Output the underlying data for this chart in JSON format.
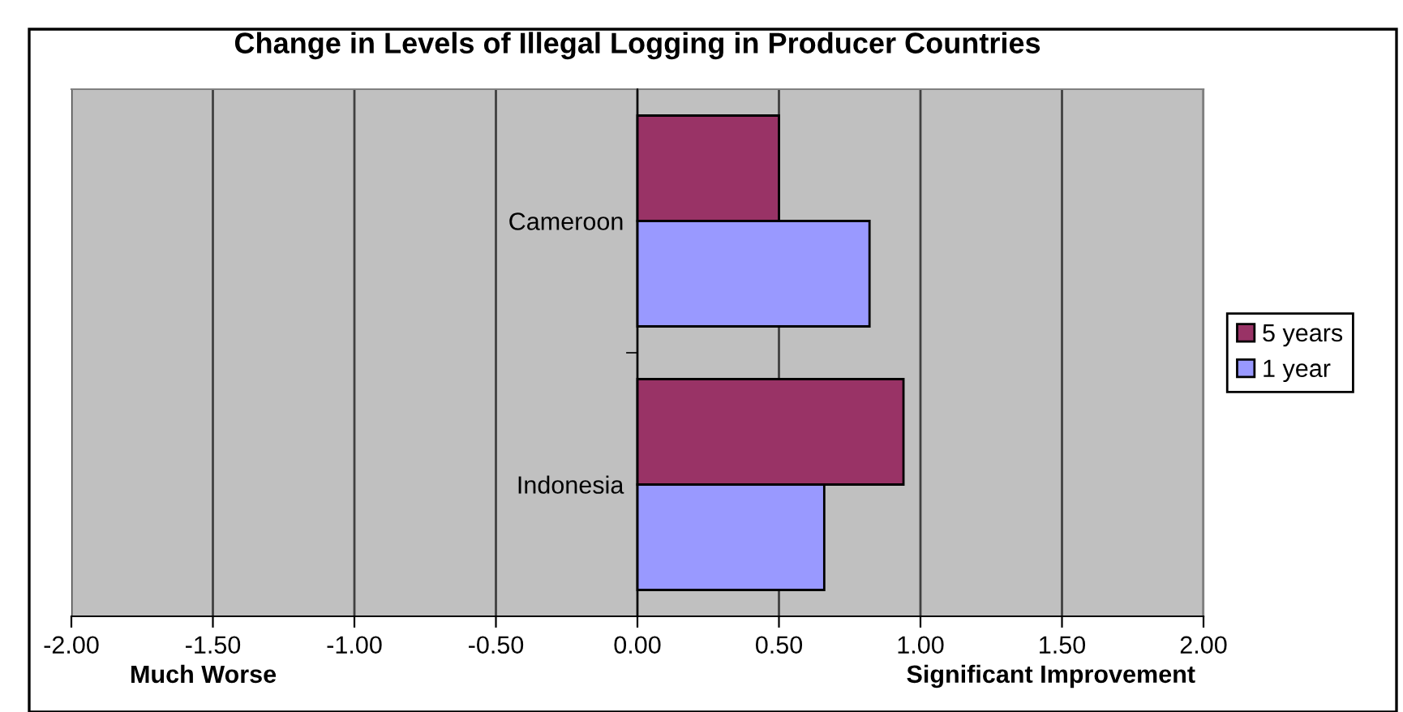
{
  "chart_data": {
    "type": "bar",
    "orientation": "horizontal",
    "title": "Change in Levels of Illegal Logging in Producer Countries",
    "categories": [
      "Cameroon",
      "Indonesia"
    ],
    "series": [
      {
        "name": "5 years",
        "color": "#993366",
        "values": [
          0.5,
          0.94
        ]
      },
      {
        "name": "1 year",
        "color": "#9999ff",
        "values": [
          0.82,
          0.66
        ]
      }
    ],
    "xlim": [
      -2,
      2
    ],
    "xticks": [
      {
        "value": -2,
        "label": "-2.00"
      },
      {
        "value": -1.5,
        "label": "-1.50"
      },
      {
        "value": -1,
        "label": "-1.00"
      },
      {
        "value": -0.5,
        "label": "-0.50"
      },
      {
        "value": 0,
        "label": "0.00"
      },
      {
        "value": 0.5,
        "label": "0.50"
      },
      {
        "value": 1,
        "label": "1.00"
      },
      {
        "value": 1.5,
        "label": "1.50"
      },
      {
        "value": 2,
        "label": "2.00"
      }
    ],
    "grid": "x",
    "legend": "right",
    "annotations": [
      "Much Worse",
      "Significant Improvement"
    ]
  }
}
